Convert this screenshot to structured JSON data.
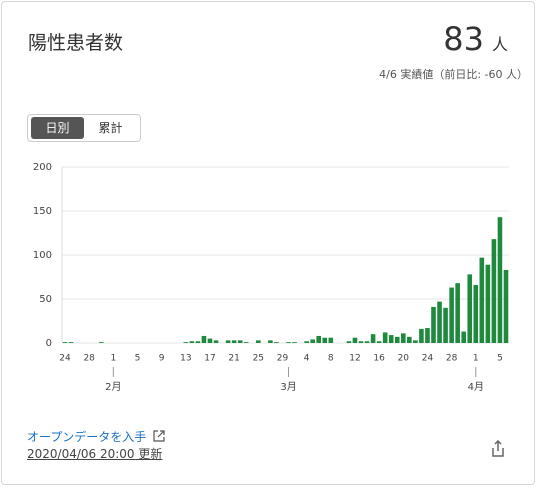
{
  "header": {
    "title": "陽性患者数",
    "value": "83",
    "unit": "人",
    "note": "4/6 実績値（前日比: -60 人）"
  },
  "toggle": [
    "日別",
    "累計"
  ],
  "chart_data": {
    "type": "bar",
    "color": "#1f8a3e",
    "grid": true,
    "ylim": [
      0,
      200
    ],
    "yticks": [
      0,
      50,
      100,
      150,
      200
    ],
    "categories": [
      "24",
      null,
      null,
      null,
      "28",
      null,
      null,
      null,
      "1",
      null,
      null,
      null,
      "5",
      null,
      null,
      null,
      "9",
      null,
      null,
      null,
      "13",
      null,
      null,
      null,
      "17",
      null,
      null,
      null,
      "21",
      null,
      null,
      null,
      "25",
      null,
      null,
      null,
      "29",
      null,
      null,
      null,
      "4",
      null,
      null,
      null,
      "8",
      null,
      null,
      null,
      "12",
      null,
      null,
      null,
      "16",
      null,
      null,
      null,
      "20",
      null,
      null,
      null,
      "24",
      null,
      null,
      null,
      "28",
      null,
      null,
      null,
      "1",
      null,
      null,
      null,
      "5",
      null
    ],
    "values": [
      1,
      1,
      0,
      0,
      0,
      0,
      1,
      0,
      0,
      0,
      0,
      0,
      0,
      0,
      0,
      0,
      0,
      0,
      0,
      0,
      1,
      2,
      2,
      8,
      5,
      3,
      0,
      3,
      3,
      3,
      1,
      0,
      3,
      0,
      3,
      1,
      0,
      1,
      1,
      0,
      2,
      4,
      8,
      6,
      6,
      0,
      0,
      2,
      6,
      2,
      2,
      10,
      2,
      12,
      9,
      7,
      11,
      7,
      3,
      16,
      17,
      41,
      47,
      40,
      63,
      68,
      13,
      78,
      66,
      97,
      89,
      118,
      143,
      83
    ],
    "month_ticks": [
      {
        "index": 8,
        "label": "2月"
      },
      {
        "index": 37,
        "label": "3月"
      },
      {
        "index": 68,
        "label": "4月"
      }
    ]
  },
  "footer": {
    "link": "オープンデータを入手",
    "updated": "2020/04/06 20:00 更新"
  }
}
